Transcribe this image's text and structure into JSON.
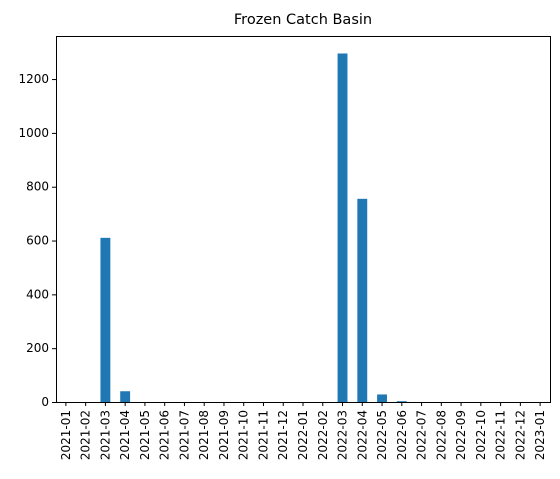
{
  "chart_data": {
    "type": "bar",
    "title": "Frozen Catch Basin",
    "xlabel": "",
    "ylabel": "",
    "categories": [
      "2021-01",
      "2021-02",
      "2021-03",
      "2021-04",
      "2021-05",
      "2021-06",
      "2021-07",
      "2021-08",
      "2021-09",
      "2021-10",
      "2021-11",
      "2021-12",
      "2022-01",
      "2022-02",
      "2022-03",
      "2022-04",
      "2022-05",
      "2022-06",
      "2022-07",
      "2022-08",
      "2022-09",
      "2022-10",
      "2022-11",
      "2022-12",
      "2023-01"
    ],
    "values": [
      0,
      0,
      610,
      40,
      0,
      0,
      0,
      0,
      0,
      0,
      0,
      0,
      0,
      0,
      1295,
      755,
      28,
      3,
      0,
      0,
      0,
      0,
      0,
      0,
      0
    ],
    "ylim": [
      0,
      1360
    ],
    "yticks": [
      0,
      200,
      400,
      600,
      800,
      1000,
      1200
    ],
    "grid": false,
    "legend": "none",
    "bar_color": "#1f77b4"
  }
}
